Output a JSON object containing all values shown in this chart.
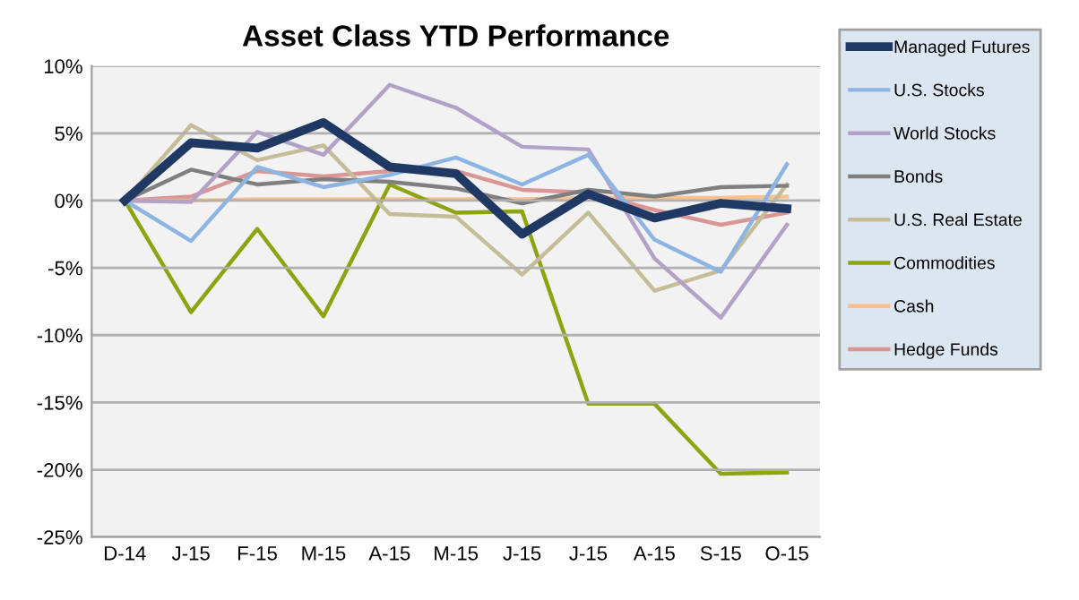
{
  "chart_data": {
    "type": "line",
    "title": "Asset Class YTD Performance",
    "categories": [
      "D-14",
      "J-15",
      "F-15",
      "M-15",
      "A-15",
      "M-15",
      "J-15",
      "J-15",
      "A-15",
      "S-15",
      "O-15"
    ],
    "series": [
      {
        "name": "Managed Futures",
        "color": "#1f3864",
        "values": [
          0,
          4.3,
          3.9,
          5.8,
          2.5,
          2.0,
          -2.5,
          0.5,
          -1.3,
          -0.2,
          -0.6
        ]
      },
      {
        "name": "U.S. Stocks",
        "color": "#8db4e2",
        "values": [
          0,
          -3.0,
          2.5,
          1.0,
          1.9,
          3.2,
          1.2,
          3.4,
          -2.9,
          -5.3,
          2.7
        ]
      },
      {
        "name": "World Stocks",
        "color": "#b3a2c7",
        "values": [
          0,
          -0.1,
          5.1,
          3.4,
          8.6,
          6.9,
          4.0,
          3.8,
          -4.3,
          -8.7,
          -1.8
        ]
      },
      {
        "name": "Bonds",
        "color": "#7f7f7f",
        "values": [
          0,
          2.3,
          1.2,
          1.6,
          1.4,
          0.9,
          -0.2,
          0.8,
          0.3,
          1.0,
          1.1
        ]
      },
      {
        "name": "U.S. Real Estate",
        "color": "#c4bd97",
        "values": [
          0,
          5.6,
          3.0,
          4.1,
          -1.0,
          -1.2,
          -5.5,
          -0.9,
          -6.7,
          -5.2,
          1.2
        ]
      },
      {
        "name": "Commodities",
        "color": "#8ea312",
        "values": [
          0,
          -8.3,
          -2.1,
          -8.6,
          1.2,
          -0.9,
          -0.8,
          -15.1,
          -15.1,
          -20.3,
          -20.2
        ]
      },
      {
        "name": "Cash",
        "color": "#fac090",
        "values": [
          0,
          0,
          0.1,
          0.1,
          0.1,
          0.1,
          0.1,
          0.2,
          0.2,
          0.2,
          0.3
        ]
      },
      {
        "name": "Hedge Funds",
        "color": "#d99694",
        "values": [
          0,
          0.3,
          2.2,
          1.8,
          2.2,
          2.2,
          0.8,
          0.6,
          -0.7,
          -1.8,
          -0.9
        ]
      }
    ],
    "ylim": [
      -25,
      10
    ],
    "yticks": [
      {
        "value": -25,
        "label": "-25%"
      },
      {
        "value": -20,
        "label": "-20%"
      },
      {
        "value": -15,
        "label": "-15%"
      },
      {
        "value": -10,
        "label": "-10%"
      },
      {
        "value": -5,
        "label": "-5%"
      },
      {
        "value": 0,
        "label": "0%"
      },
      {
        "value": 5,
        "label": "5%"
      },
      {
        "value": 10,
        "label": "10%"
      }
    ],
    "grid": "y",
    "legend": "right",
    "marker": "none",
    "line_style": "solid"
  }
}
